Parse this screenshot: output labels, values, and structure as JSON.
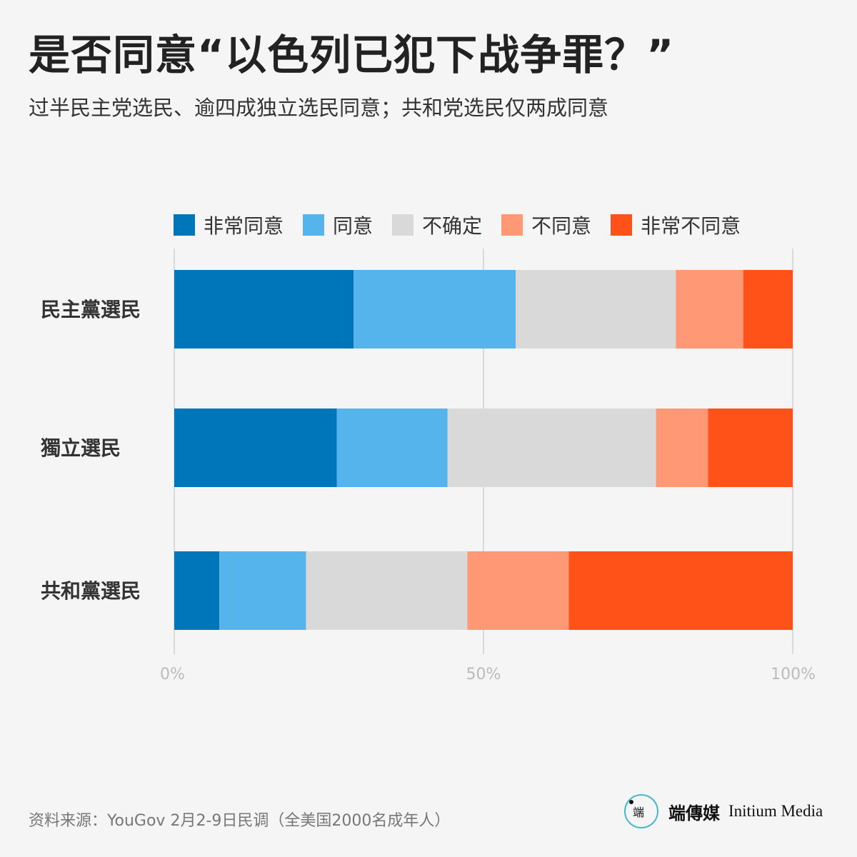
{
  "title": "是否同意“以色列已犯下战争罪？”",
  "subtitle": "过半民主党选民、逾四成独立选民同意；共和党选民仅两成同意",
  "source": "资料来源：YouGov 2月2-9日民调（全美国2000名成年人）",
  "brand": {
    "logo_text": "端",
    "name_cn": "端傳媒",
    "name_en": "Initium Media"
  },
  "chart_data": {
    "type": "bar",
    "orientation": "horizontal",
    "stacked": true,
    "categories": [
      "民主黨選民",
      "獨立選民",
      "共和黨選民"
    ],
    "series": [
      {
        "name": "非常同意",
        "color": "#0076ba",
        "values": [
          29,
          26.3,
          7.3
        ]
      },
      {
        "name": "同意",
        "color": "#56b4ec",
        "values": [
          26.2,
          17.9,
          14
        ]
      },
      {
        "name": "不确定",
        "color": "#d9d9d9",
        "values": [
          25.9,
          33.7,
          26.1
        ]
      },
      {
        "name": "不同意",
        "color": "#ff9874",
        "values": [
          10.9,
          8.4,
          16.4
        ]
      },
      {
        "name": "非常不同意",
        "color": "#ff5219",
        "values": [
          8,
          13.7,
          36.2
        ]
      }
    ],
    "xlim": [
      0,
      100
    ],
    "ticks": [
      "0%",
      "50%",
      "100%"
    ],
    "tick_values": [
      0,
      50,
      100
    ],
    "grid": true,
    "legend_position": "top"
  }
}
